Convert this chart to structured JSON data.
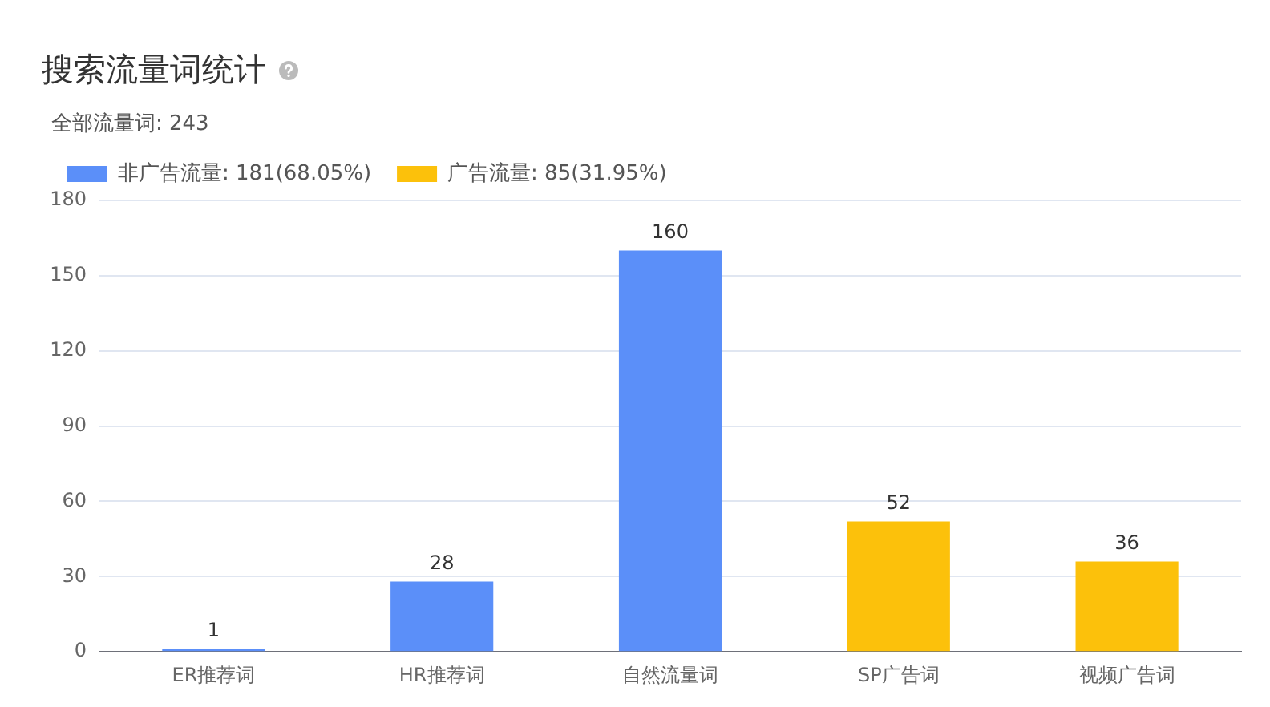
{
  "chart_data": {
    "type": "bar",
    "title": "搜索流量词统计",
    "subtitle": "全部流量词: 243",
    "categories": [
      "ER推荐词",
      "HR推荐词",
      "自然流量词",
      "SP广告词",
      "视频广告词"
    ],
    "series": [
      {
        "name": "非广告流量: 181(68.05%)",
        "color": "#5b8ff9",
        "values": [
          1,
          28,
          160,
          null,
          null
        ]
      },
      {
        "name": "广告流量: 85(31.95%)",
        "color": "#fcc10b",
        "values": [
          null,
          null,
          null,
          52,
          36
        ]
      }
    ],
    "ylim": [
      0,
      180
    ],
    "yticks": [
      0,
      30,
      60,
      90,
      120,
      150,
      180
    ],
    "grid": "y",
    "legend": "top left",
    "data_labels": true
  }
}
